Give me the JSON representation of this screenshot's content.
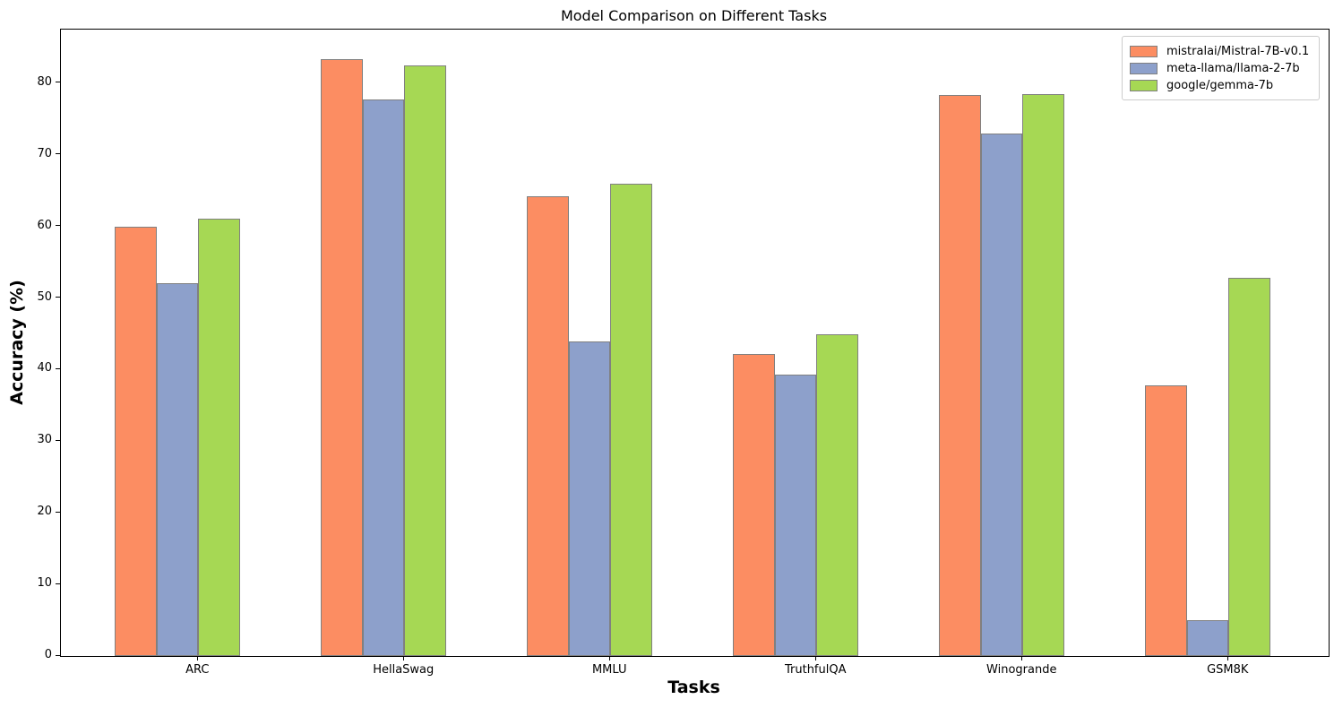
{
  "chart_data": {
    "type": "bar",
    "title": "Model Comparison on Different Tasks",
    "xlabel": "Tasks",
    "ylabel": "Accuracy (%)",
    "categories": [
      "ARC",
      "HellaSwag",
      "MMLU",
      "TruthfulQA",
      "Winogrande",
      "GSM8K"
    ],
    "series": [
      {
        "name": "mistralai/Mistral-7B-v0.1",
        "color": "#FC8D62",
        "values": [
          59.98,
          83.31,
          64.16,
          42.15,
          78.37,
          37.83
        ]
      },
      {
        "name": "meta-llama/llama-2-7b",
        "color": "#8DA0CB",
        "values": [
          52.1,
          77.7,
          43.9,
          39.3,
          73.0,
          5.0
        ]
      },
      {
        "name": "google/gemma-7b",
        "color": "#A6D854",
        "values": [
          61.1,
          82.5,
          66.0,
          44.9,
          78.5,
          52.8
        ]
      }
    ],
    "ylim": [
      0,
      87.5
    ],
    "yticks": [
      0,
      10,
      20,
      30,
      40,
      50,
      60,
      70,
      80
    ],
    "grid": false,
    "legend_position": "upper right",
    "bar_edge_color": "#808080",
    "legend_frame_color": "#cccccc",
    "axes_color": "#000000",
    "background_color": "#ffffff"
  }
}
